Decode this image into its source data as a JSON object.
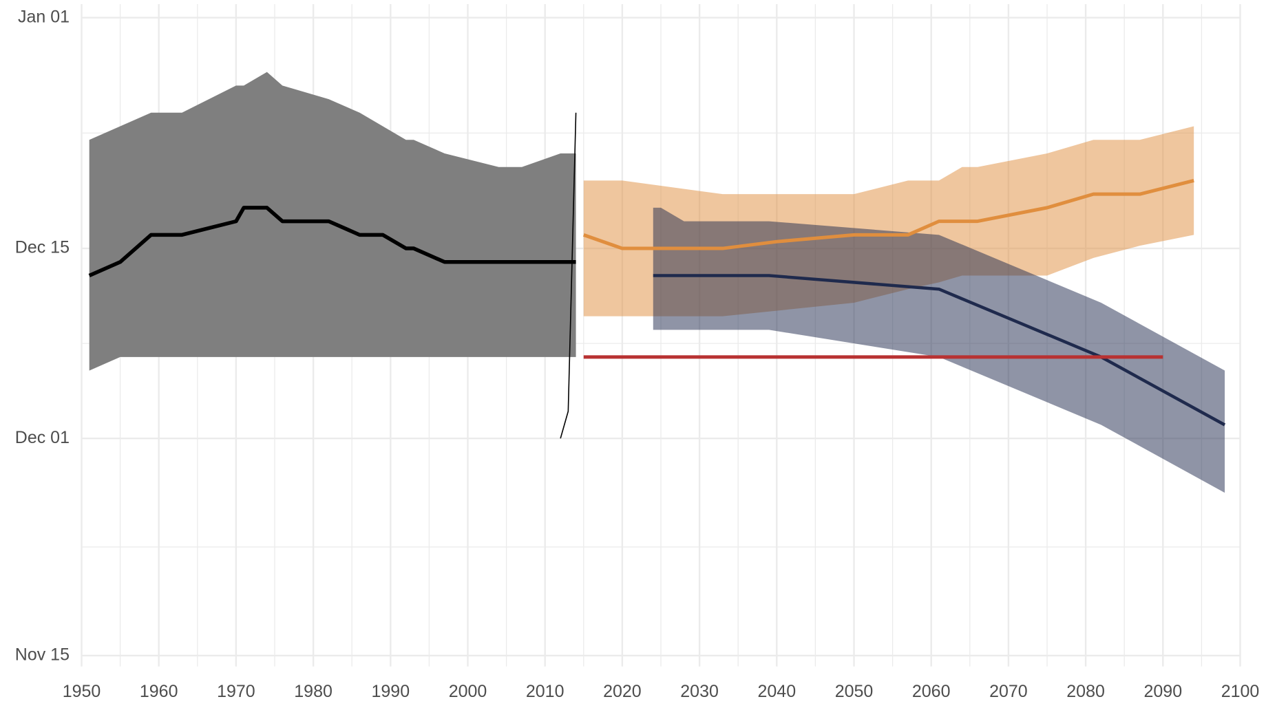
{
  "chart_data": {
    "type": "line",
    "xlim": [
      1950,
      2100
    ],
    "xticks": [
      1950,
      1960,
      1970,
      1980,
      1990,
      2000,
      2010,
      2020,
      2030,
      2040,
      2050,
      2060,
      2070,
      2080,
      2090,
      2100
    ],
    "ylim": [
      318.2,
      367
    ],
    "yticks": [
      {
        "value": 319,
        "label": "Nov 15"
      },
      {
        "value": 335,
        "label": "Dec 01"
      },
      {
        "value": 349,
        "label": "Dec 15"
      },
      {
        "value": 366,
        "label": "Jan 01"
      }
    ],
    "minor_grid": true,
    "bands": [
      {
        "color": "#7f7f7f",
        "x": [
          1951,
          1955,
          1959,
          1963,
          1970,
          1971,
          1974,
          1976,
          1982,
          1986,
          1992,
          1993,
          1997,
          2004,
          2007,
          2012,
          2014
        ],
        "upper": [
          357,
          358,
          359,
          359,
          361,
          361,
          362,
          361,
          360,
          359,
          357,
          357,
          356,
          355,
          355,
          356,
          356
        ],
        "lower": [
          340,
          341,
          341,
          341,
          341,
          341,
          341,
          341,
          341,
          341,
          341,
          341,
          341,
          341,
          341,
          341,
          341
        ]
      },
      {
        "color": "rgba(224,142,62,0.5)",
        "x": [
          2015,
          2020,
          2033,
          2050,
          2057,
          2061,
          2064,
          2066,
          2075,
          2081,
          2087,
          2094
        ],
        "upper": [
          354,
          354,
          353,
          353,
          354,
          354,
          355,
          355,
          356,
          357,
          357,
          358
        ],
        "lower": [
          344,
          344,
          344,
          345,
          346,
          346.5,
          347,
          347,
          347,
          348.3,
          349.2,
          350
        ]
      },
      {
        "color": "rgba(31,42,77,0.5)",
        "x": [
          2024,
          2025,
          2028,
          2039,
          2061,
          2082,
          2098
        ],
        "upper": [
          352,
          352,
          351,
          351,
          350,
          345,
          340
        ],
        "lower": [
          343,
          343,
          343,
          343,
          341,
          336,
          331
        ]
      }
    ],
    "series": [
      {
        "color": "#000000",
        "x": [
          1951,
          1955,
          1959,
          1963,
          1970,
          1971,
          1974,
          1976,
          1982,
          1986,
          1989,
          1992,
          1993,
          1997,
          2014
        ],
        "values": [
          347,
          348,
          350,
          350,
          351,
          352,
          352,
          351,
          351,
          350,
          350,
          349,
          349,
          348,
          348
        ]
      },
      {
        "color": "#000000",
        "x": [
          2012,
          2013,
          2014
        ],
        "values": [
          335,
          337,
          359
        ]
      },
      {
        "color": "#1f2a4d",
        "x": [
          2024,
          2039,
          2061,
          2082,
          2098
        ],
        "values": [
          347,
          347,
          346,
          341,
          336
        ]
      },
      {
        "color": "#e08e3e",
        "x": [
          2015,
          2020,
          2033,
          2040,
          2050,
          2057,
          2061,
          2066,
          2075,
          2081,
          2087,
          2094
        ],
        "values": [
          350,
          349,
          349,
          349.5,
          350,
          350,
          351,
          351,
          352,
          353,
          353,
          354
        ]
      },
      {
        "color": "#b83232",
        "x": [
          2015,
          2090
        ],
        "values": [
          341,
          341
        ]
      }
    ]
  }
}
